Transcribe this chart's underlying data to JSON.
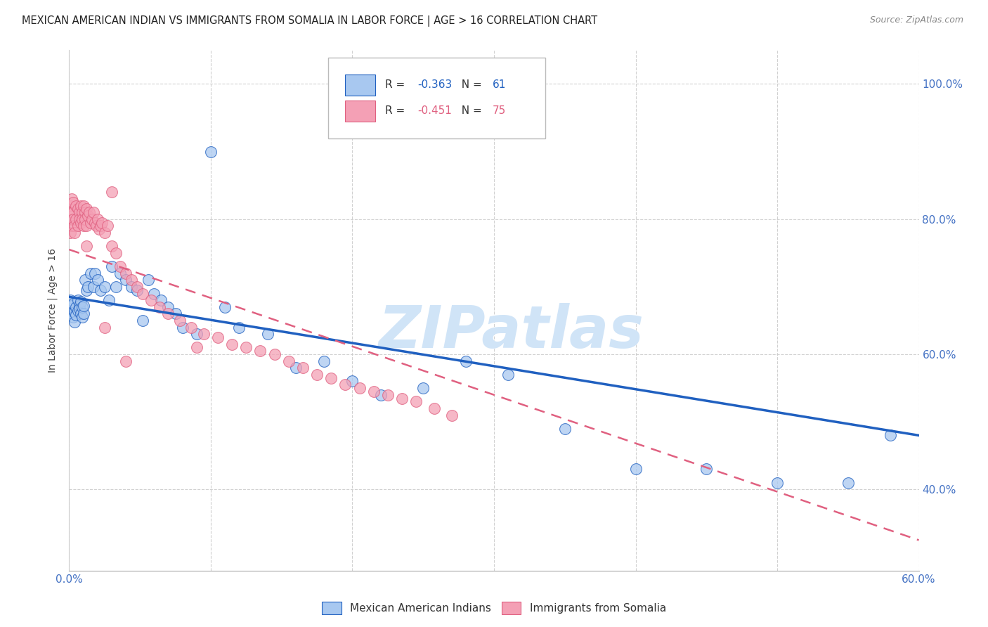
{
  "title": "MEXICAN AMERICAN INDIAN VS IMMIGRANTS FROM SOMALIA IN LABOR FORCE | AGE > 16 CORRELATION CHART",
  "source": "Source: ZipAtlas.com",
  "ylabel": "In Labor Force | Age > 16",
  "xlim": [
    0.0,
    0.6
  ],
  "ylim": [
    0.28,
    1.05
  ],
  "blue_R": -0.363,
  "blue_N": 61,
  "pink_R": -0.451,
  "pink_N": 75,
  "blue_color": "#A8C8F0",
  "pink_color": "#F4A0B5",
  "blue_line_color": "#2060C0",
  "pink_line_color": "#E06080",
  "background_color": "#ffffff",
  "grid_color": "#cccccc",
  "watermark": "ZIPatlas",
  "watermark_color": "#d0e4f7",
  "legend_label_blue": "Mexican American Indians",
  "legend_label_pink": "Immigrants from Somalia",
  "title_fontsize": 11,
  "blue_line_x0": 0.0,
  "blue_line_y0": 0.685,
  "blue_line_x1": 0.6,
  "blue_line_y1": 0.48,
  "pink_line_x0": 0.0,
  "pink_line_y0": 0.755,
  "pink_line_x1": 0.6,
  "pink_line_y1": 0.325,
  "blue_scatter_x": [
    0.001,
    0.001,
    0.002,
    0.002,
    0.003,
    0.003,
    0.004,
    0.004,
    0.005,
    0.005,
    0.006,
    0.006,
    0.007,
    0.007,
    0.008,
    0.008,
    0.009,
    0.009,
    0.01,
    0.01,
    0.011,
    0.012,
    0.013,
    0.015,
    0.017,
    0.018,
    0.02,
    0.022,
    0.025,
    0.028,
    0.03,
    0.033,
    0.036,
    0.04,
    0.044,
    0.048,
    0.052,
    0.056,
    0.06,
    0.065,
    0.07,
    0.075,
    0.08,
    0.09,
    0.1,
    0.11,
    0.12,
    0.14,
    0.16,
    0.18,
    0.2,
    0.22,
    0.25,
    0.28,
    0.31,
    0.35,
    0.4,
    0.45,
    0.5,
    0.55,
    0.58
  ],
  "blue_scatter_y": [
    0.68,
    0.665,
    0.672,
    0.66,
    0.655,
    0.675,
    0.662,
    0.648,
    0.67,
    0.658,
    0.68,
    0.665,
    0.672,
    0.668,
    0.66,
    0.678,
    0.655,
    0.67,
    0.66,
    0.672,
    0.71,
    0.695,
    0.7,
    0.72,
    0.7,
    0.72,
    0.71,
    0.695,
    0.7,
    0.68,
    0.73,
    0.7,
    0.72,
    0.71,
    0.7,
    0.695,
    0.65,
    0.71,
    0.69,
    0.68,
    0.67,
    0.66,
    0.64,
    0.63,
    0.9,
    0.67,
    0.64,
    0.63,
    0.58,
    0.59,
    0.56,
    0.54,
    0.55,
    0.59,
    0.57,
    0.49,
    0.43,
    0.43,
    0.41,
    0.41,
    0.48
  ],
  "pink_scatter_x": [
    0.001,
    0.001,
    0.001,
    0.002,
    0.002,
    0.002,
    0.003,
    0.003,
    0.003,
    0.004,
    0.004,
    0.005,
    0.005,
    0.006,
    0.006,
    0.007,
    0.007,
    0.008,
    0.008,
    0.009,
    0.009,
    0.01,
    0.01,
    0.011,
    0.011,
    0.012,
    0.012,
    0.013,
    0.014,
    0.015,
    0.016,
    0.017,
    0.018,
    0.019,
    0.02,
    0.021,
    0.022,
    0.023,
    0.025,
    0.027,
    0.03,
    0.033,
    0.036,
    0.04,
    0.044,
    0.048,
    0.052,
    0.058,
    0.064,
    0.07,
    0.078,
    0.086,
    0.095,
    0.105,
    0.115,
    0.125,
    0.135,
    0.145,
    0.155,
    0.165,
    0.175,
    0.185,
    0.195,
    0.205,
    0.215,
    0.225,
    0.235,
    0.245,
    0.258,
    0.27,
    0.03,
    0.012,
    0.025,
    0.04,
    0.09
  ],
  "pink_scatter_y": [
    0.78,
    0.82,
    0.8,
    0.83,
    0.81,
    0.79,
    0.81,
    0.825,
    0.8,
    0.79,
    0.78,
    0.82,
    0.8,
    0.815,
    0.79,
    0.81,
    0.8,
    0.82,
    0.795,
    0.81,
    0.8,
    0.82,
    0.79,
    0.81,
    0.8,
    0.815,
    0.79,
    0.805,
    0.81,
    0.795,
    0.8,
    0.81,
    0.795,
    0.79,
    0.8,
    0.785,
    0.79,
    0.795,
    0.78,
    0.79,
    0.76,
    0.75,
    0.73,
    0.72,
    0.71,
    0.7,
    0.69,
    0.68,
    0.67,
    0.66,
    0.65,
    0.64,
    0.63,
    0.625,
    0.615,
    0.61,
    0.605,
    0.6,
    0.59,
    0.58,
    0.57,
    0.565,
    0.555,
    0.55,
    0.545,
    0.54,
    0.535,
    0.53,
    0.52,
    0.51,
    0.84,
    0.76,
    0.64,
    0.59,
    0.61
  ]
}
